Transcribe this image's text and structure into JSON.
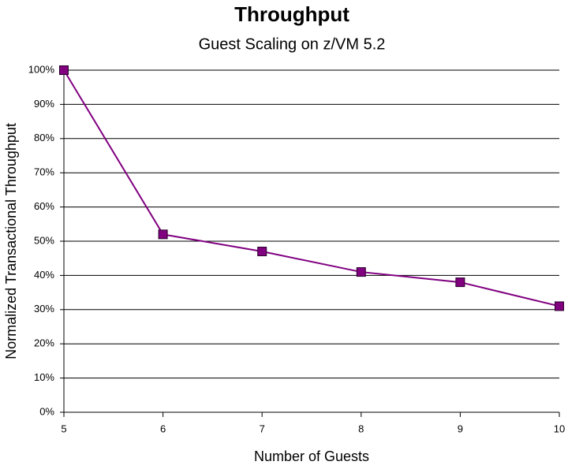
{
  "chart_data": {
    "type": "line",
    "title": "Throughput",
    "subtitle": "Guest Scaling on z/VM 5.2",
    "x_label": "Number of Guests",
    "y_label": "Normalized Transactional Throughput",
    "x": [
      5,
      6,
      7,
      8,
      9,
      10
    ],
    "values": [
      100,
      52,
      47,
      41,
      38,
      31
    ],
    "color": "#800080",
    "xlim": [
      5,
      10
    ],
    "xticks": [
      5,
      6,
      7,
      8,
      9,
      10
    ],
    "ylim": [
      0,
      100
    ],
    "yticks": [
      {
        "value": 0,
        "label": "0%"
      },
      {
        "value": 10,
        "label": "10%"
      },
      {
        "value": 20,
        "label": "20%"
      },
      {
        "value": 30,
        "label": "30%"
      },
      {
        "value": 40,
        "label": "40%"
      },
      {
        "value": 50,
        "label": "50%"
      },
      {
        "value": 60,
        "label": "60%"
      },
      {
        "value": 70,
        "label": "70%"
      },
      {
        "value": 80,
        "label": "80%"
      },
      {
        "value": 90,
        "label": "90%"
      },
      {
        "value": 100,
        "label": "100%"
      }
    ],
    "grid": true
  }
}
